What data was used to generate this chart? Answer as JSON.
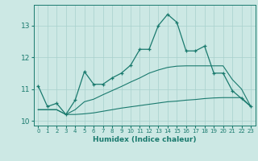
{
  "title": "",
  "xlabel": "Humidex (Indice chaleur)",
  "x_values": [
    0,
    1,
    2,
    3,
    4,
    5,
    6,
    7,
    8,
    9,
    10,
    11,
    12,
    13,
    14,
    15,
    16,
    17,
    18,
    19,
    20,
    21,
    22,
    23
  ],
  "line1": [
    11.1,
    10.45,
    10.55,
    10.2,
    10.65,
    11.55,
    11.15,
    11.15,
    11.35,
    11.5,
    11.75,
    12.25,
    12.25,
    13.0,
    13.35,
    13.1,
    12.2,
    12.2,
    12.35,
    11.5,
    11.5,
    10.95,
    10.7,
    10.45
  ],
  "line2": [
    10.35,
    10.35,
    10.35,
    10.2,
    10.2,
    10.22,
    10.25,
    10.3,
    10.35,
    10.4,
    10.44,
    10.48,
    10.52,
    10.56,
    10.6,
    10.62,
    10.65,
    10.67,
    10.7,
    10.72,
    10.73,
    10.73,
    10.73,
    10.45
  ],
  "line3": [
    10.35,
    10.35,
    10.35,
    10.2,
    10.35,
    10.6,
    10.68,
    10.82,
    10.95,
    11.08,
    11.22,
    11.35,
    11.5,
    11.6,
    11.68,
    11.72,
    11.73,
    11.73,
    11.73,
    11.73,
    11.73,
    11.3,
    11.0,
    10.45
  ],
  "line_color": "#1a7a6e",
  "bg_color": "#cce8e4",
  "grid_color": "#a8d0cc",
  "tick_color": "#1a7a6e",
  "label_color": "#1a7a6e",
  "ylim": [
    9.85,
    13.65
  ],
  "yticks": [
    10,
    11,
    12,
    13
  ]
}
